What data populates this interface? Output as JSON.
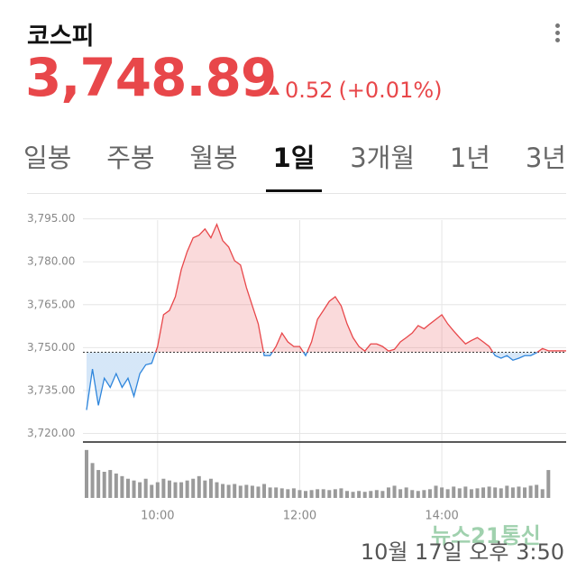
{
  "header": {
    "title": "코스피",
    "price": "3,748.89",
    "change": "0.52",
    "change_pct": "(+0.01%)",
    "tabs": [
      "일봉",
      "주봉",
      "월봉",
      "1일",
      "3개월",
      "1년",
      "3년"
    ],
    "selected_tab": 3
  },
  "chart_data": [
    {
      "type": "line",
      "x": [
        "09:00",
        "09:05",
        "09:10",
        "09:15",
        "09:20",
        "09:25",
        "09:30",
        "09:35",
        "09:40",
        "09:45",
        "09:50",
        "09:55",
        "10:00",
        "10:05",
        "10:10",
        "10:15",
        "10:20",
        "10:25",
        "10:30",
        "10:35",
        "10:40",
        "10:45",
        "10:50",
        "10:55",
        "11:00",
        "11:05",
        "11:10",
        "11:15",
        "11:20",
        "11:25",
        "11:30",
        "11:35",
        "11:40",
        "11:45",
        "11:50",
        "11:55",
        "12:00",
        "12:05",
        "12:10",
        "12:15",
        "12:20",
        "12:25",
        "12:30",
        "12:35",
        "12:40",
        "12:45",
        "12:50",
        "12:55",
        "13:00",
        "13:05",
        "13:10",
        "13:15",
        "13:20",
        "13:25",
        "13:30",
        "13:35",
        "13:40",
        "13:45",
        "13:50",
        "13:55",
        "14:00",
        "14:05",
        "14:10",
        "14:15",
        "14:20",
        "14:25",
        "14:30",
        "14:35",
        "14:40",
        "14:45",
        "14:50",
        "14:55",
        "15:00",
        "15:05",
        "15:10",
        "15:15",
        "15:20",
        "15:25",
        "15:30",
        "15:45"
      ],
      "values": [
        3728.2,
        3742.5,
        3729.8,
        3739.3,
        3736.1,
        3740.9,
        3736.1,
        3739.3,
        3733.0,
        3740.9,
        3744.0,
        3744.5,
        3750.4,
        3761.5,
        3763.0,
        3767.8,
        3777.3,
        3783.6,
        3788.4,
        3789.3,
        3791.5,
        3788.4,
        3793.1,
        3787.4,
        3785.2,
        3780.4,
        3778.9,
        3771.0,
        3764.6,
        3758.3,
        3747.2,
        3747.2,
        3750.4,
        3755.1,
        3752.0,
        3750.4,
        3750.4,
        3747.2,
        3752.0,
        3759.9,
        3763.0,
        3766.2,
        3767.8,
        3764.6,
        3758.3,
        3753.5,
        3750.4,
        3748.8,
        3751.3,
        3751.3,
        3750.4,
        3748.8,
        3749.4,
        3752.0,
        3753.5,
        3755.1,
        3757.7,
        3756.6,
        3758.3,
        3759.9,
        3761.5,
        3758.3,
        3755.8,
        3753.5,
        3751.3,
        3752.5,
        3753.5,
        3752.0,
        3750.4,
        3747.2,
        3746.3,
        3747.2,
        3745.6,
        3746.3,
        3747.2,
        3747.2,
        3748.2,
        3749.7,
        3748.89,
        3748.89
      ],
      "xlim": [
        "09:00",
        "15:45"
      ],
      "xticks": [
        "10:00",
        "12:00",
        "14:00"
      ],
      "ylim": [
        3717,
        3799
      ],
      "yticks": [
        {
          "value": 3720,
          "label": "3,720.00"
        },
        {
          "value": 3735,
          "label": "3,735.00"
        },
        {
          "value": 3750,
          "label": "3,750.00"
        },
        {
          "value": 3765,
          "label": "3,765.00"
        },
        {
          "value": 3780,
          "label": "3,780.00"
        },
        {
          "value": 3795,
          "label": "3,795.00"
        }
      ],
      "reference_line": 3748.37,
      "up_color": "#e8474a",
      "down_color": "#2f86dc",
      "grid": true
    },
    {
      "type": "bar",
      "x": [
        "09:00",
        "09:05",
        "09:10",
        "09:15",
        "09:20",
        "09:25",
        "09:30",
        "09:35",
        "09:40",
        "09:45",
        "09:50",
        "09:55",
        "10:00",
        "10:05",
        "10:10",
        "10:15",
        "10:20",
        "10:25",
        "10:30",
        "10:35",
        "10:40",
        "10:45",
        "10:50",
        "10:55",
        "11:00",
        "11:05",
        "11:10",
        "11:15",
        "11:20",
        "11:25",
        "11:30",
        "11:35",
        "11:40",
        "11:45",
        "11:50",
        "11:55",
        "12:00",
        "12:05",
        "12:10",
        "12:15",
        "12:20",
        "12:25",
        "12:30",
        "12:35",
        "12:40",
        "12:45",
        "12:50",
        "12:55",
        "13:00",
        "13:05",
        "13:10",
        "13:15",
        "13:20",
        "13:25",
        "13:30",
        "13:35",
        "13:40",
        "13:45",
        "13:50",
        "13:55",
        "14:00",
        "14:05",
        "14:10",
        "14:15",
        "14:20",
        "14:25",
        "14:30",
        "14:35",
        "14:40",
        "14:45",
        "14:50",
        "14:55",
        "15:00",
        "15:05",
        "15:10",
        "15:15",
        "15:20",
        "15:25",
        "15:30"
      ],
      "values": [
        55,
        40,
        32,
        30,
        32,
        28,
        25,
        22,
        20,
        18,
        22,
        15,
        18,
        22,
        20,
        18,
        18,
        20,
        22,
        25,
        20,
        22,
        18,
        16,
        15,
        16,
        14,
        15,
        14,
        13,
        16,
        12,
        12,
        11,
        10,
        11,
        9,
        8,
        9,
        10,
        10,
        9,
        10,
        11,
        8,
        7,
        8,
        7,
        8,
        9,
        8,
        12,
        14,
        10,
        12,
        9,
        8,
        9,
        10,
        14,
        12,
        10,
        13,
        11,
        13,
        10,
        11,
        12,
        13,
        12,
        11,
        14,
        12,
        13,
        12,
        14,
        15,
        10,
        32
      ],
      "ylim": [
        0,
        60
      ],
      "color": "#9a9a9a"
    }
  ],
  "footer": {
    "timestamp": "10월 17일 오후 3:50",
    "watermark": "뉴스21통신"
  }
}
